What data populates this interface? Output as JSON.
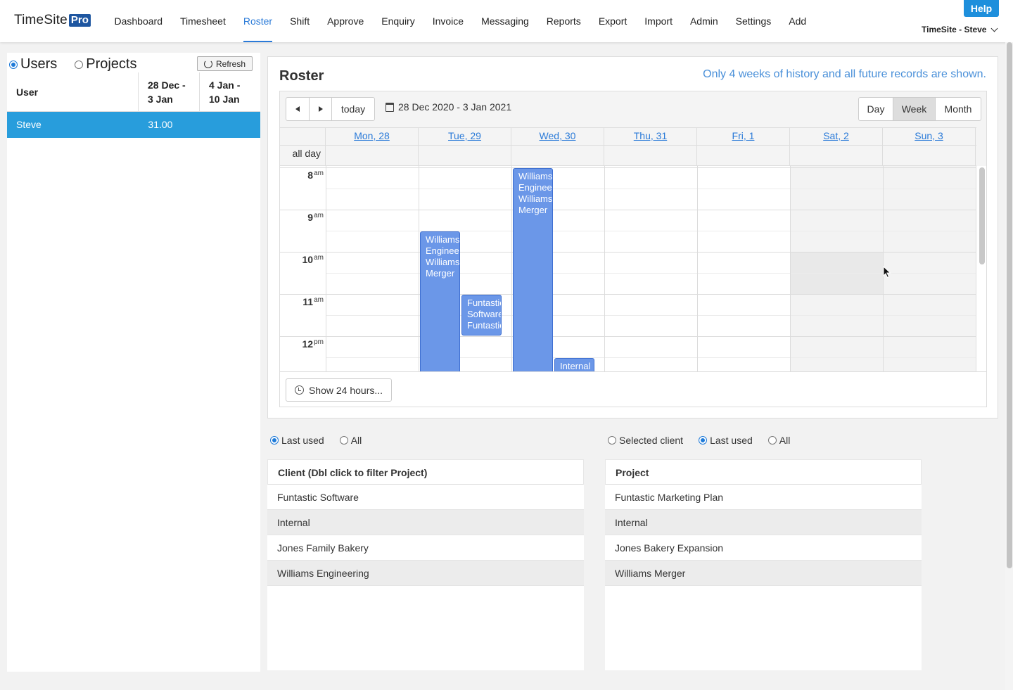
{
  "header": {
    "logo_main": "TimeSite",
    "logo_pro": "Pro",
    "nav": [
      "Dashboard",
      "Timesheet",
      "Roster",
      "Shift",
      "Approve",
      "Enquiry",
      "Invoice",
      "Messaging",
      "Reports",
      "Export",
      "Import",
      "Admin",
      "Settings",
      "Add"
    ],
    "active_nav": "Roster",
    "help_label": "Help",
    "user_label": "TimeSite - Steve",
    "accent_color": "#2a7ad8"
  },
  "left": {
    "mode_users": "Users",
    "mode_projects": "Projects",
    "selected_mode": "Users",
    "refresh_label": "Refresh",
    "columns": [
      "User",
      "28 Dec - 3 Jan",
      "4 Jan - 10 Jan"
    ],
    "rows": [
      {
        "user": "Steve",
        "week1": "31.00",
        "week2": ""
      }
    ]
  },
  "roster": {
    "title": "Roster",
    "note": "Only 4 weeks of history and all future records are shown.",
    "today_label": "today",
    "date_range": "28 Dec 2020 - 3 Jan 2021",
    "views": [
      "Day",
      "Week",
      "Month"
    ],
    "active_view": "Week",
    "days": [
      "Mon, 28",
      "Tue, 29",
      "Wed, 30",
      "Thu, 31",
      "Fri, 1",
      "Sat, 2",
      "Sun, 3"
    ],
    "all_day_label": "all day",
    "hours": [
      {
        "h": "8",
        "ap": "am"
      },
      {
        "h": "9",
        "ap": "am"
      },
      {
        "h": "10",
        "ap": "am"
      },
      {
        "h": "11",
        "ap": "am"
      },
      {
        "h": "12",
        "ap": "pm"
      }
    ],
    "events": [
      {
        "day": 1,
        "start": 9.5,
        "end": 13.0,
        "lines": [
          "Williams",
          "Engineering",
          "Williams",
          "Merger"
        ]
      },
      {
        "day": 1,
        "start": 11.0,
        "end": 12.0,
        "lines": [
          "Funtastic",
          "Software",
          "Funtastic"
        ]
      },
      {
        "day": 2,
        "start": 8.0,
        "end": 13.0,
        "lines": [
          "Williams",
          "Engineering",
          "Williams",
          "Merger"
        ]
      },
      {
        "day": 2,
        "start": 12.5,
        "end": 13.0,
        "lines": [
          "Internal"
        ]
      }
    ],
    "show24_label": "Show 24 hours...",
    "event_color": "#6b97e8"
  },
  "clients": {
    "filter_last_used": "Last used",
    "filter_all": "All",
    "selected_filter": "Last used",
    "header": "Client (Dbl click to filter Project)",
    "items": [
      "Funtastic Software",
      "Internal",
      "Jones Family Bakery",
      "Williams Engineering"
    ]
  },
  "projects": {
    "filter_selected_client": "Selected client",
    "filter_last_used": "Last used",
    "filter_all": "All",
    "selected_filter": "Last used",
    "header": "Project",
    "items": [
      "Funtastic Marketing Plan",
      "Internal",
      "Jones Bakery Expansion",
      "Williams Merger"
    ]
  }
}
